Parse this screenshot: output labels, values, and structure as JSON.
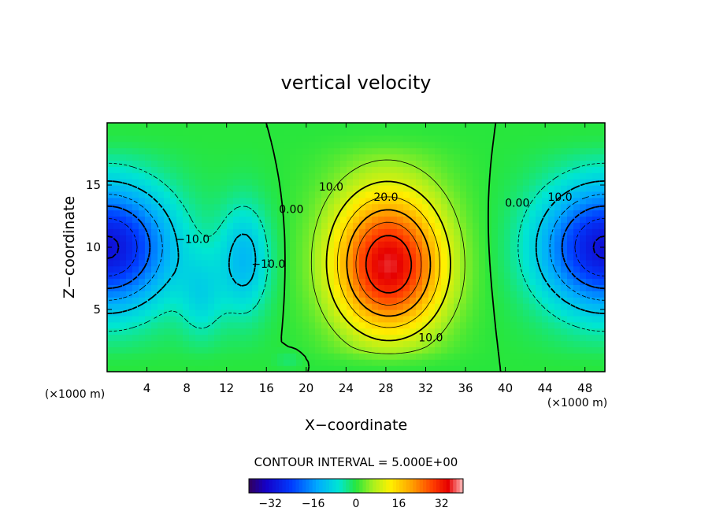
{
  "chart_data": {
    "type": "heatmap",
    "title": "vertical velocity",
    "xlabel": "X−coordinate",
    "ylabel": "Z−coordinate",
    "x_unit_left": "(×1000 m)",
    "x_unit_right": "(×1000 m)",
    "xlim": [
      0,
      50
    ],
    "ylim": [
      0,
      20
    ],
    "x_ticks": [
      4,
      8,
      12,
      16,
      20,
      24,
      28,
      32,
      36,
      40,
      44,
      48
    ],
    "y_ticks": [
      5,
      10,
      15
    ],
    "contour_interval_text": "CONTOUR INTERVAL = 5.000E+00",
    "contour_interval": 5,
    "colorbar": {
      "min": -40,
      "max": 40,
      "tick_values": [
        -32,
        -16,
        0,
        16,
        32
      ],
      "tick_labels": [
        "−32",
        "−16",
        "0",
        "16",
        "32"
      ]
    },
    "contour_labels": [
      {
        "text": "0.00",
        "x": 18.5,
        "y": 13
      },
      {
        "text": "10.0",
        "x": 22.5,
        "y": 14.8
      },
      {
        "text": "20.0",
        "x": 28,
        "y": 14
      },
      {
        "text": "0.00",
        "x": 41.2,
        "y": 13.5
      },
      {
        "text": "10.0",
        "x": 45.5,
        "y": 14
      },
      {
        "text": "−10.0",
        "x": 8.6,
        "y": 10.6
      },
      {
        "text": "−10.0",
        "x": 16.2,
        "y": 8.6
      },
      {
        "text": "10.0",
        "x": 32.5,
        "y": 2.7
      }
    ],
    "field_features": [
      {
        "kind": "updraft",
        "center_x": 28,
        "center_y": 8,
        "peak": 33
      },
      {
        "kind": "downdraft",
        "center_x": 0,
        "center_y": 10,
        "peak": -31
      },
      {
        "kind": "downdraft",
        "center_x": 50,
        "center_y": 10,
        "peak": -31
      },
      {
        "kind": "downdraft",
        "center_x": 13.5,
        "center_y": 9,
        "peak": -12
      },
      {
        "kind": "downdraft",
        "center_x": 9,
        "center_y": 7,
        "peak": -7
      }
    ]
  },
  "colors": {
    "frame": "#000000",
    "background": "#ffffff"
  }
}
